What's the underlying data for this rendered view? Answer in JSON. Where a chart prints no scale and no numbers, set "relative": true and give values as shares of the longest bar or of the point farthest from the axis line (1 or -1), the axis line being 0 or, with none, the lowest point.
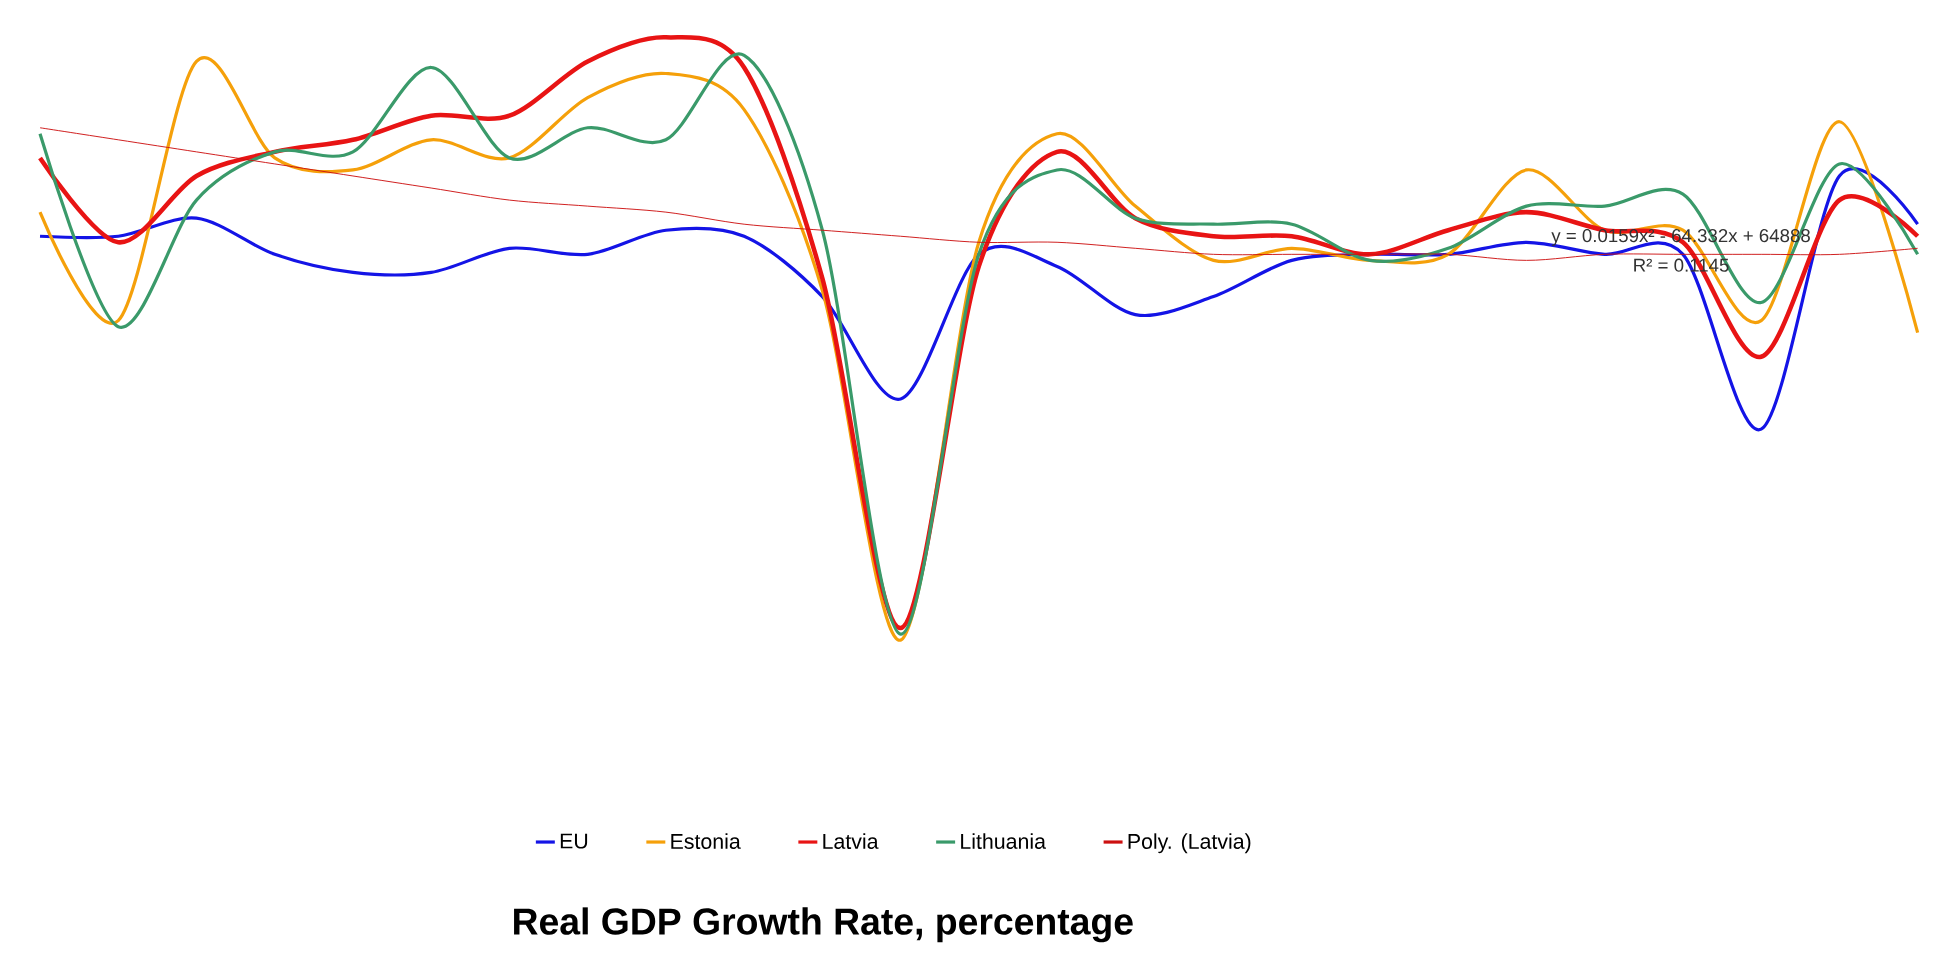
{
  "chart_data": {
    "type": "line",
    "title": "Real GDP Growth Rate, percentage",
    "relative": true,
    "legend": "bottom",
    "categories": [
      null,
      null,
      null,
      null,
      null,
      null,
      null,
      null,
      null,
      null,
      null,
      null,
      null,
      null,
      null,
      null,
      null,
      null,
      null,
      null,
      null,
      null,
      null,
      null,
      null
    ],
    "annotations": [
      "y = 0.0159x² - 64.332x + 64888",
      "R² = 0.1145"
    ],
    "series": [
      {
        "name": "EU",
        "color": "#1414e6",
        "values": [
          0.67,
          0.67,
          0.7,
          0.64,
          0.61,
          0.61,
          0.65,
          0.64,
          0.68,
          0.67,
          0.57,
          0.4,
          0.64,
          0.62,
          0.54,
          0.57,
          0.63,
          0.64,
          0.64,
          0.66,
          0.64,
          0.64,
          0.35,
          0.77,
          0.69
        ]
      },
      {
        "name": "Estonia",
        "color": "#f5a00a",
        "values": [
          0.71,
          0.53,
          0.96,
          0.8,
          0.78,
          0.83,
          0.8,
          0.9,
          0.94,
          0.88,
          0.58,
          0,
          0.66,
          0.84,
          0.72,
          0.63,
          0.65,
          0.63,
          0.64,
          0.78,
          0.68,
          0.68,
          0.53,
          0.86,
          0.51
        ]
      },
      {
        "name": "Latvia",
        "color": "#e81414",
        "values": [
          0.8,
          0.66,
          0.77,
          0.81,
          0.83,
          0.87,
          0.87,
          0.96,
          1,
          0.95,
          0.6,
          0.02,
          0.62,
          0.81,
          0.7,
          0.67,
          0.67,
          0.64,
          0.68,
          0.71,
          0.68,
          0.66,
          0.47,
          0.73,
          0.67
        ]
      },
      {
        "name": "Lithuania",
        "color": "#3a9a6a",
        "values": [
          0.84,
          0.52,
          0.73,
          0.81,
          0.81,
          0.95,
          0.8,
          0.85,
          0.83,
          0.97,
          0.68,
          0.01,
          0.64,
          0.78,
          0.7,
          0.69,
          0.69,
          0.63,
          0.65,
          0.72,
          0.72,
          0.74,
          0.56,
          0.79,
          0.64
        ]
      },
      {
        "name": "Poly. (Latvia)",
        "color": "#cc1010",
        "values": [
          0.85,
          0.83,
          0.81,
          0.79,
          0.77,
          0.75,
          0.73,
          0.72,
          0.71,
          0.69,
          0.68,
          0.67,
          0.66,
          0.66,
          0.65,
          0.64,
          0.64,
          0.64,
          0.64,
          0.63,
          0.64,
          0.64,
          0.64,
          0.64,
          0.65
        ]
      }
    ]
  }
}
